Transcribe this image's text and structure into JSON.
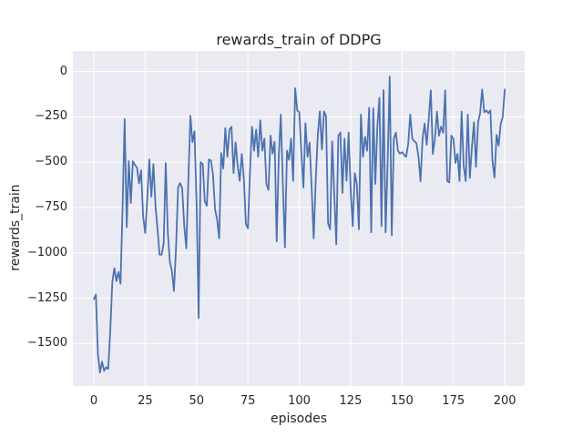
{
  "figure": {
    "background": "#ffffff",
    "plot_background": "#eaeaf2",
    "grid_color": "#ffffff",
    "text_color": "#262626"
  },
  "chart_data": {
    "type": "line",
    "title": "rewards_train of DDPG",
    "xlabel": "episodes",
    "ylabel": "rewards_train",
    "legend": "none",
    "grid": true,
    "line_color": "#4c72b0",
    "xlim": [
      -10.2,
      209.7
    ],
    "ylim": [
      -1734,
      113
    ],
    "x_ticks": [
      0,
      25,
      50,
      75,
      100,
      125,
      150,
      175,
      200
    ],
    "x_tick_labels": [
      "0",
      "25",
      "50",
      "75",
      "100",
      "125",
      "150",
      "175",
      "200"
    ],
    "y_ticks": [
      0,
      -250,
      -500,
      -750,
      -1000,
      -1250,
      -1500
    ],
    "y_tick_labels": [
      "0",
      "−250",
      "−500",
      "−750",
      "−1000",
      "−1250",
      "−1500"
    ],
    "series": [
      {
        "name": "rewards_train",
        "x_start": 0,
        "x_step": 1,
        "values": [
          -1255,
          -1230,
          -1560,
          -1660,
          -1600,
          -1650,
          -1630,
          -1640,
          -1430,
          -1160,
          -1085,
          -1155,
          -1105,
          -1170,
          -750,
          -262,
          -858,
          -495,
          -725,
          -495,
          -515,
          -530,
          -617,
          -545,
          -800,
          -890,
          -700,
          -485,
          -690,
          -510,
          -740,
          -870,
          -1010,
          -1010,
          -945,
          -505,
          -885,
          -1050,
          -1100,
          -1210,
          -975,
          -640,
          -615,
          -645,
          -850,
          -975,
          -600,
          -245,
          -390,
          -330,
          -730,
          -1360,
          -500,
          -510,
          -715,
          -740,
          -485,
          -490,
          -570,
          -760,
          -815,
          -920,
          -450,
          -535,
          -312,
          -470,
          -320,
          -305,
          -560,
          -390,
          -520,
          -603,
          -455,
          -587,
          -840,
          -865,
          -550,
          -305,
          -437,
          -320,
          -470,
          -270,
          -437,
          -370,
          -620,
          -653,
          -353,
          -453,
          -387,
          -937,
          -470,
          -237,
          -620,
          -970,
          -437,
          -487,
          -370,
          -603,
          -92,
          -215,
          -225,
          -450,
          -640,
          -285,
          -470,
          -392,
          -640,
          -920,
          -600,
          -350,
          -220,
          -430,
          -220,
          -245,
          -837,
          -870,
          -385,
          -670,
          -953,
          -353,
          -337,
          -670,
          -370,
          -603,
          -337,
          -653,
          -853,
          -560,
          -620,
          -870,
          -237,
          -470,
          -360,
          -437,
          -200,
          -887,
          -203,
          -620,
          -300,
          -145,
          -853,
          -103,
          -887,
          -500,
          -29,
          -903,
          -370,
          -337,
          -437,
          -453,
          -445,
          -460,
          -470,
          -400,
          -237,
          -370,
          -385,
          -395,
          -470,
          -605,
          -370,
          -287,
          -404,
          -262,
          -104,
          -455,
          -371,
          -221,
          -354,
          -304,
          -337,
          -104,
          -604,
          -612,
          -354,
          -370,
          -504,
          -454,
          -604,
          -221,
          -521,
          -604,
          -237,
          -587,
          -420,
          -280,
          -526,
          -280,
          -230,
          -99,
          -225,
          -215,
          -230,
          -215,
          -493,
          -585,
          -350,
          -409,
          -292,
          -250,
          -99
        ]
      }
    ]
  }
}
